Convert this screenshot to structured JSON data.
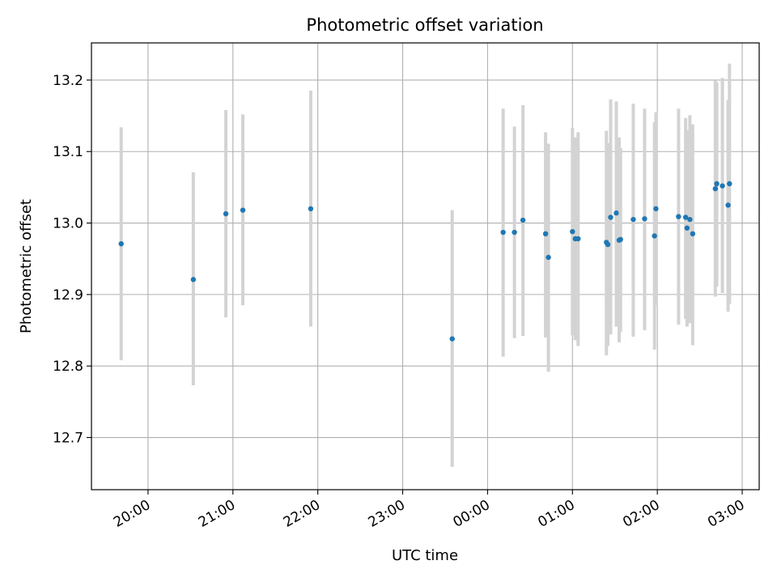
{
  "chart_data": {
    "type": "scatter",
    "title": "Photometric offset variation",
    "xlabel": "UTC time",
    "ylabel": "Photometric offset",
    "x_ticks": [
      "20:00",
      "21:00",
      "22:00",
      "23:00",
      "00:00",
      "01:00",
      "02:00",
      "03:00"
    ],
    "y_ticks": [
      "12.7",
      "12.8",
      "12.9",
      "13.0",
      "13.1",
      "13.2"
    ],
    "xlim": [
      "19:20",
      "03:12"
    ],
    "ylim": [
      12.627,
      13.252
    ],
    "grid": true,
    "legend": "none",
    "colors": {
      "points": "#1f77b4",
      "errorbars": "#d3d3d3",
      "grid": "#b0b0b0"
    },
    "points": [
      {
        "x": "19:41",
        "y": 12.971,
        "lo": 12.808,
        "hi": 13.134
      },
      {
        "x": "20:32",
        "y": 12.921,
        "lo": 12.773,
        "hi": 13.071
      },
      {
        "x": "20:55",
        "y": 13.013,
        "lo": 12.868,
        "hi": 13.158
      },
      {
        "x": "21:07",
        "y": 13.018,
        "lo": 12.885,
        "hi": 13.152
      },
      {
        "x": "21:55",
        "y": 13.02,
        "lo": 12.855,
        "hi": 13.185
      },
      {
        "x": "23:35",
        "y": 12.838,
        "lo": 12.659,
        "hi": 13.018
      },
      {
        "x": "00:11",
        "y": 12.987,
        "lo": 12.813,
        "hi": 13.16
      },
      {
        "x": "00:19",
        "y": 12.987,
        "lo": 12.839,
        "hi": 13.135
      },
      {
        "x": "00:25",
        "y": 13.004,
        "lo": 12.842,
        "hi": 13.165
      },
      {
        "x": "00:41",
        "y": 12.985,
        "lo": 12.84,
        "hi": 13.127
      },
      {
        "x": "00:43",
        "y": 12.952,
        "lo": 12.792,
        "hi": 13.111
      },
      {
        "x": "01:00",
        "y": 12.988,
        "lo": 12.843,
        "hi": 13.133
      },
      {
        "x": "01:02",
        "y": 12.978,
        "lo": 12.836,
        "hi": 13.12
      },
      {
        "x": "01:04",
        "y": 12.978,
        "lo": 12.828,
        "hi": 13.127
      },
      {
        "x": "01:24",
        "y": 12.973,
        "lo": 12.815,
        "hi": 13.129
      },
      {
        "x": "01:25",
        "y": 12.97,
        "lo": 12.828,
        "hi": 13.112
      },
      {
        "x": "01:27",
        "y": 13.008,
        "lo": 12.844,
        "hi": 13.173
      },
      {
        "x": "01:31",
        "y": 13.014,
        "lo": 12.855,
        "hi": 13.17
      },
      {
        "x": "01:33",
        "y": 12.976,
        "lo": 12.833,
        "hi": 13.12
      },
      {
        "x": "01:34",
        "y": 12.977,
        "lo": 12.848,
        "hi": 13.105
      },
      {
        "x": "01:43",
        "y": 13.005,
        "lo": 12.841,
        "hi": 13.167
      },
      {
        "x": "01:51",
        "y": 13.006,
        "lo": 12.85,
        "hi": 13.16
      },
      {
        "x": "01:58",
        "y": 12.982,
        "lo": 12.823,
        "hi": 13.141
      },
      {
        "x": "01:59",
        "y": 13.02,
        "lo": 12.885,
        "hi": 13.155
      },
      {
        "x": "02:15",
        "y": 13.009,
        "lo": 12.858,
        "hi": 13.16
      },
      {
        "x": "02:20",
        "y": 13.008,
        "lo": 12.866,
        "hi": 13.147
      },
      {
        "x": "02:21",
        "y": 12.993,
        "lo": 12.855,
        "hi": 13.13
      },
      {
        "x": "02:23",
        "y": 13.005,
        "lo": 12.86,
        "hi": 13.151
      },
      {
        "x": "02:25",
        "y": 12.985,
        "lo": 12.829,
        "hi": 13.138
      },
      {
        "x": "02:41",
        "y": 13.048,
        "lo": 12.897,
        "hi": 13.199
      },
      {
        "x": "02:42",
        "y": 13.055,
        "lo": 12.911,
        "hi": 13.197
      },
      {
        "x": "02:46",
        "y": 13.052,
        "lo": 12.902,
        "hi": 13.203
      },
      {
        "x": "02:50",
        "y": 13.025,
        "lo": 12.876,
        "hi": 13.172
      },
      {
        "x": "02:51",
        "y": 13.055,
        "lo": 12.887,
        "hi": 13.223
      }
    ]
  }
}
